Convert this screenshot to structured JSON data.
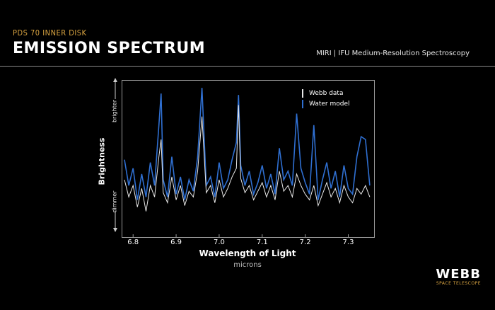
{
  "header": {
    "subtitle": "PDS 70 INNER DISK",
    "title": "EMISSION SPECTRUM",
    "instrument": "MIRI | IFU Medium-Resolution Spectroscopy"
  },
  "logo": {
    "name": "WEBB",
    "tagline": "SPACE TELESCOPE"
  },
  "colors": {
    "accent": "#d9a441",
    "webb_data": "#e8e8e8",
    "water_model": "#2f6fd1"
  },
  "chart_data": {
    "type": "line",
    "xlabel": "Wavelength of Light",
    "xunits": "microns",
    "ylabel": "Brightness",
    "y_top_text": "brighter",
    "y_bottom_text": "dimmer",
    "xlim": [
      6.775,
      7.36
    ],
    "ylim": [
      0,
      1
    ],
    "xticks": [
      "6.8",
      "6.9",
      "7.0",
      "7.1",
      "7.2",
      "7.3"
    ],
    "legend_position": "top-right",
    "series": [
      {
        "name": "Webb data",
        "color": "#e8e8e8",
        "x": [
          6.78,
          6.79,
          6.8,
          6.81,
          6.82,
          6.83,
          6.84,
          6.85,
          6.86,
          6.865,
          6.87,
          6.88,
          6.89,
          6.9,
          6.91,
          6.92,
          6.93,
          6.94,
          6.95,
          6.96,
          6.97,
          6.98,
          6.99,
          7.0,
          7.01,
          7.02,
          7.03,
          7.04,
          7.045,
          7.05,
          7.06,
          7.07,
          7.08,
          7.09,
          7.1,
          7.11,
          7.12,
          7.13,
          7.14,
          7.15,
          7.16,
          7.17,
          7.18,
          7.19,
          7.2,
          7.21,
          7.22,
          7.23,
          7.24,
          7.25,
          7.26,
          7.27,
          7.28,
          7.29,
          7.3,
          7.31,
          7.32,
          7.33,
          7.34,
          7.35
        ],
        "y": [
          0.34,
          0.22,
          0.3,
          0.15,
          0.28,
          0.12,
          0.3,
          0.22,
          0.5,
          0.62,
          0.25,
          0.18,
          0.36,
          0.2,
          0.3,
          0.16,
          0.26,
          0.22,
          0.4,
          0.78,
          0.25,
          0.3,
          0.18,
          0.34,
          0.22,
          0.28,
          0.36,
          0.42,
          0.86,
          0.35,
          0.25,
          0.3,
          0.2,
          0.26,
          0.32,
          0.22,
          0.3,
          0.2,
          0.4,
          0.26,
          0.3,
          0.22,
          0.38,
          0.3,
          0.24,
          0.2,
          0.3,
          0.16,
          0.24,
          0.32,
          0.22,
          0.28,
          0.18,
          0.3,
          0.22,
          0.18,
          0.28,
          0.24,
          0.3,
          0.22
        ]
      },
      {
        "name": "Water model",
        "color": "#2f6fd1",
        "x": [
          6.78,
          6.79,
          6.8,
          6.81,
          6.82,
          6.83,
          6.84,
          6.85,
          6.86,
          6.865,
          6.87,
          6.88,
          6.89,
          6.9,
          6.91,
          6.92,
          6.93,
          6.94,
          6.95,
          6.96,
          6.97,
          6.98,
          6.99,
          7.0,
          7.01,
          7.02,
          7.03,
          7.04,
          7.045,
          7.05,
          7.06,
          7.07,
          7.08,
          7.09,
          7.1,
          7.11,
          7.12,
          7.13,
          7.14,
          7.15,
          7.16,
          7.17,
          7.18,
          7.19,
          7.2,
          7.21,
          7.22,
          7.23,
          7.24,
          7.25,
          7.26,
          7.27,
          7.28,
          7.29,
          7.3,
          7.31,
          7.32,
          7.33,
          7.34,
          7.35
        ],
        "y": [
          0.48,
          0.3,
          0.42,
          0.2,
          0.38,
          0.22,
          0.46,
          0.3,
          0.72,
          0.94,
          0.34,
          0.22,
          0.5,
          0.24,
          0.36,
          0.2,
          0.34,
          0.26,
          0.5,
          0.98,
          0.3,
          0.36,
          0.22,
          0.46,
          0.28,
          0.34,
          0.48,
          0.6,
          0.93,
          0.44,
          0.3,
          0.4,
          0.24,
          0.32,
          0.44,
          0.28,
          0.38,
          0.24,
          0.56,
          0.34,
          0.4,
          0.3,
          0.8,
          0.42,
          0.32,
          0.24,
          0.72,
          0.2,
          0.34,
          0.46,
          0.28,
          0.4,
          0.22,
          0.44,
          0.28,
          0.24,
          0.5,
          0.64,
          0.62,
          0.3
        ]
      }
    ]
  }
}
